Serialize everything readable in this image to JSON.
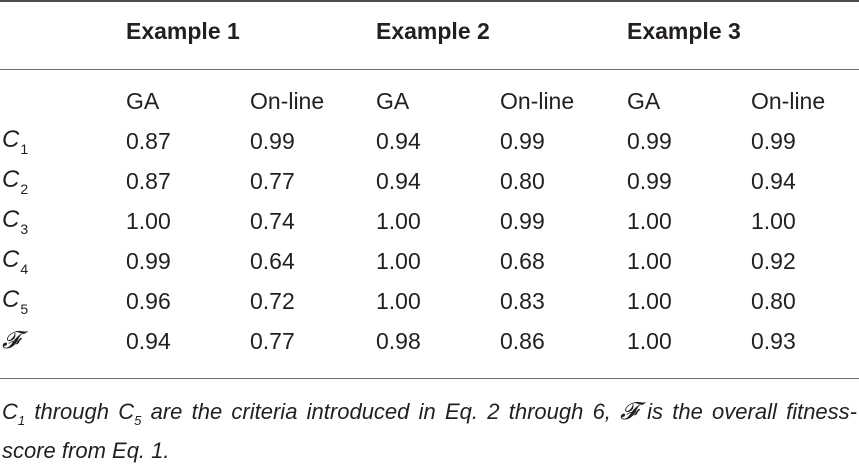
{
  "table": {
    "group_headers": [
      "Example 1",
      "Example 2",
      "Example 3"
    ],
    "sub_headers": [
      "GA",
      "On-line",
      "GA",
      "On-line",
      "GA",
      "On-line"
    ],
    "rows": [
      {
        "label": "C",
        "sub": "1",
        "values": [
          "0.87",
          "0.99",
          "0.94",
          "0.99",
          "0.99",
          "0.99"
        ]
      },
      {
        "label": "C",
        "sub": "2",
        "values": [
          "0.87",
          "0.77",
          "0.94",
          "0.80",
          "0.99",
          "0.94"
        ]
      },
      {
        "label": "C",
        "sub": "3",
        "values": [
          "1.00",
          "0.74",
          "1.00",
          "0.99",
          "1.00",
          "1.00"
        ]
      },
      {
        "label": "C",
        "sub": "4",
        "values": [
          "0.99",
          "0.64",
          "1.00",
          "0.68",
          "1.00",
          "0.92"
        ]
      },
      {
        "label": "C",
        "sub": "5",
        "values": [
          "0.96",
          "0.72",
          "1.00",
          "0.83",
          "1.00",
          "0.80"
        ]
      },
      {
        "label": "𝓕",
        "sub": "",
        "values": [
          "0.94",
          "0.77",
          "0.98",
          "0.86",
          "1.00",
          "0.93"
        ]
      }
    ]
  },
  "footnote": {
    "c1": "C",
    "c1_sub": "1",
    "through": " through ",
    "c5": "C",
    "c5_sub": "5",
    "text1": " are the criteria introduced in Eq. 2 through 6, ",
    "f_symbol": "𝓕",
    "text2": " is the overall fitness-score from Eq. 1."
  }
}
